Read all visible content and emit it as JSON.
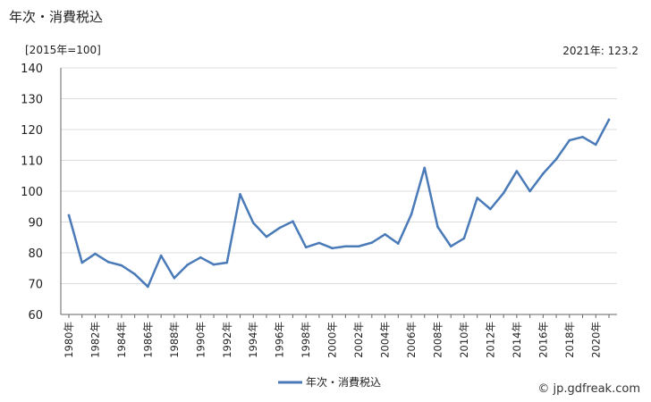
{
  "header": {
    "title": "年次・消費税込",
    "unit": "[2015年=100]",
    "latest": "2021年: 123.2"
  },
  "footer": {
    "credit": "© jp.gdfreak.com"
  },
  "colors": {
    "series": "#4a7ab8",
    "grid": "#dcdcdc",
    "axis": "#666666"
  },
  "chart_data": {
    "type": "line",
    "title": "年次・消費税込",
    "ylim": [
      60,
      140
    ],
    "yticks": [
      "60",
      "70",
      "80",
      "90",
      "100",
      "110",
      "120",
      "130",
      "140"
    ],
    "x_tick_labels": [
      "1980年",
      "1982年",
      "1984年",
      "1986年",
      "1988年",
      "1990年",
      "1992年",
      "1994年",
      "1996年",
      "1998年",
      "2000年",
      "2002年",
      "2004年",
      "2006年",
      "2008年",
      "2010年",
      "2012年",
      "2014年",
      "2016年",
      "2018年",
      "2020年"
    ],
    "grid": "horizontal",
    "legend_position": "bottom",
    "x": [
      1980,
      1981,
      1982,
      1983,
      1984,
      1985,
      1986,
      1987,
      1988,
      1989,
      1990,
      1991,
      1992,
      1993,
      1994,
      1995,
      1996,
      1997,
      1998,
      1999,
      2000,
      2001,
      2002,
      2003,
      2004,
      2005,
      2006,
      2007,
      2008,
      2009,
      2010,
      2011,
      2012,
      2013,
      2014,
      2015,
      2016,
      2017,
      2018,
      2019,
      2020,
      2021
    ],
    "series": [
      {
        "name": "年次・消費税込",
        "values": [
          92.2,
          76.8,
          79.7,
          77.0,
          75.9,
          73.1,
          69.0,
          79.1,
          71.8,
          76.1,
          78.5,
          76.2,
          76.8,
          99.0,
          89.7,
          85.2,
          88.1,
          90.2,
          81.8,
          83.2,
          81.5,
          82.1,
          82.1,
          83.3,
          86.0,
          83.0,
          92.5,
          107.6,
          88.4,
          82.1,
          84.7,
          97.8,
          94.2,
          99.4,
          106.5,
          100.0,
          105.7,
          110.4,
          116.5,
          117.6,
          115.1,
          123.2
        ]
      }
    ]
  }
}
